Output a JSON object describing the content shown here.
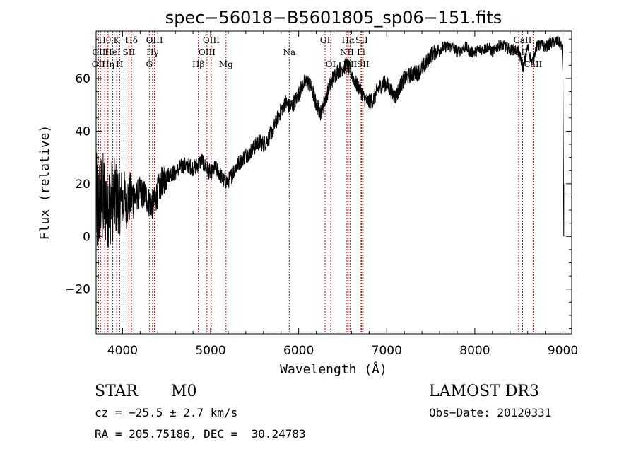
{
  "chart_data": {
    "type": "line",
    "title": "spec−56018−B5601805_sp06−151.fits",
    "xlabel": "Wavelength (Å)",
    "ylabel": "Flux (relative)",
    "xlim": [
      3700,
      9100
    ],
    "ylim": [
      -37,
      78
    ],
    "x_ticks": [
      4000,
      5000,
      6000,
      7000,
      8000,
      9000
    ],
    "x_tick_labels": [
      "4000",
      "5000",
      "6000",
      "7000",
      "8000",
      "9000"
    ],
    "y_ticks": [
      -20,
      0,
      20,
      40,
      60
    ],
    "y_tick_labels": [
      "−20",
      "0",
      "20",
      "40",
      "60"
    ],
    "grid": false,
    "series": [
      {
        "name": "flux",
        "color": "#000000",
        "anchors": [
          [
            3700,
            10
          ],
          [
            3750,
            12
          ],
          [
            3800,
            14
          ],
          [
            3850,
            13
          ],
          [
            3900,
            14
          ],
          [
            3950,
            15
          ],
          [
            4000,
            13
          ],
          [
            4050,
            14
          ],
          [
            4100,
            15
          ],
          [
            4150,
            15
          ],
          [
            4200,
            17
          ],
          [
            4250,
            16
          ],
          [
            4300,
            13
          ],
          [
            4350,
            12
          ],
          [
            4400,
            17
          ],
          [
            4450,
            21
          ],
          [
            4500,
            23
          ],
          [
            4550,
            24
          ],
          [
            4600,
            24
          ],
          [
            4650,
            26
          ],
          [
            4700,
            27
          ],
          [
            4750,
            27
          ],
          [
            4800,
            26
          ],
          [
            4850,
            27
          ],
          [
            4900,
            29
          ],
          [
            4950,
            26
          ],
          [
            5000,
            24
          ],
          [
            5050,
            26
          ],
          [
            5100,
            24
          ],
          [
            5150,
            21
          ],
          [
            5200,
            21
          ],
          [
            5250,
            24
          ],
          [
            5300,
            27
          ],
          [
            5350,
            29
          ],
          [
            5400,
            31
          ],
          [
            5450,
            32
          ],
          [
            5500,
            34
          ],
          [
            5550,
            36
          ],
          [
            5600,
            35
          ],
          [
            5650,
            37
          ],
          [
            5700,
            40
          ],
          [
            5750,
            44
          ],
          [
            5800,
            48
          ],
          [
            5850,
            51
          ],
          [
            5900,
            49
          ],
          [
            5950,
            51
          ],
          [
            6000,
            54
          ],
          [
            6050,
            58
          ],
          [
            6100,
            59
          ],
          [
            6150,
            56
          ],
          [
            6200,
            50
          ],
          [
            6250,
            47
          ],
          [
            6300,
            52
          ],
          [
            6350,
            57
          ],
          [
            6400,
            61
          ],
          [
            6450,
            63
          ],
          [
            6500,
            64
          ],
          [
            6550,
            65
          ],
          [
            6600,
            62
          ],
          [
            6650,
            58
          ],
          [
            6700,
            56
          ],
          [
            6750,
            52
          ],
          [
            6800,
            51
          ],
          [
            6850,
            52
          ],
          [
            6900,
            56
          ],
          [
            6950,
            58
          ],
          [
            7000,
            58
          ],
          [
            7050,
            55
          ],
          [
            7100,
            53
          ],
          [
            7150,
            57
          ],
          [
            7200,
            60
          ],
          [
            7250,
            61
          ],
          [
            7300,
            62
          ],
          [
            7350,
            62
          ],
          [
            7400,
            64
          ],
          [
            7450,
            66
          ],
          [
            7500,
            69
          ],
          [
            7550,
            70
          ],
          [
            7600,
            71
          ],
          [
            7650,
            72
          ],
          [
            7700,
            72
          ],
          [
            7750,
            72
          ],
          [
            7800,
            70
          ],
          [
            7850,
            71
          ],
          [
            7900,
            72
          ],
          [
            7950,
            70
          ],
          [
            8000,
            70
          ],
          [
            8050,
            71
          ],
          [
            8100,
            71
          ],
          [
            8150,
            72
          ],
          [
            8200,
            70
          ],
          [
            8250,
            72
          ],
          [
            8300,
            73
          ],
          [
            8350,
            72
          ],
          [
            8400,
            71
          ],
          [
            8450,
            71
          ],
          [
            8500,
            70
          ],
          [
            8550,
            64
          ],
          [
            8600,
            72
          ],
          [
            8650,
            66
          ],
          [
            8700,
            72
          ],
          [
            8750,
            73
          ],
          [
            8800,
            72
          ],
          [
            8850,
            73
          ],
          [
            8900,
            74
          ],
          [
            8950,
            74
          ],
          [
            8990,
            72
          ],
          [
            9000,
            62
          ],
          [
            9010,
            0
          ]
        ]
      }
    ],
    "line_markers": [
      {
        "x": 3727,
        "label": "OII",
        "row": 2
      },
      {
        "x": 3750,
        "label": "OIII",
        "row": 1
      },
      {
        "x": 3798,
        "label": "Hθ",
        "row": 0
      },
      {
        "x": 3835,
        "label": "Hη",
        "row": 2
      },
      {
        "x": 3889,
        "label": "HeI",
        "row": 1
      },
      {
        "x": 3934,
        "label": "K",
        "row": 0
      },
      {
        "x": 3968,
        "label": "H",
        "row": 2
      },
      {
        "x": 4072,
        "label": "SII",
        "row": 1
      },
      {
        "x": 4102,
        "label": "Hδ",
        "row": 0
      },
      {
        "x": 4304,
        "label": "G",
        "row": 2
      },
      {
        "x": 4341,
        "label": "Hγ",
        "row": 1
      },
      {
        "x": 4363,
        "label": "OIII",
        "row": 0
      },
      {
        "x": 4861,
        "label": "Hβ",
        "row": 2
      },
      {
        "x": 4959,
        "label": "OIII",
        "row": 1
      },
      {
        "x": 5007,
        "label": "OIII",
        "row": 0
      },
      {
        "x": 5175,
        "label": "Mg",
        "row": 2
      },
      {
        "x": 5893,
        "label": "Na",
        "row": 1
      },
      {
        "x": 6300,
        "label": "OI",
        "row": 0
      },
      {
        "x": 6364,
        "label": "OI",
        "row": 2
      },
      {
        "x": 6548,
        "label": "NII",
        "row": 1
      },
      {
        "x": 6563,
        "label": "Hα",
        "row": 0
      },
      {
        "x": 6583,
        "label": "NII",
        "row": 2
      },
      {
        "x": 6708,
        "label": "Li",
        "row": 1
      },
      {
        "x": 6716,
        "label": "SII",
        "row": 0
      },
      {
        "x": 6731,
        "label": "SII",
        "row": 2
      },
      {
        "x": 8498,
        "label": "CaII",
        "row": 1
      },
      {
        "x": 8542,
        "label": "CaII",
        "row": 0
      },
      {
        "x": 8662,
        "label": "CaII",
        "row": 2
      }
    ]
  },
  "info": {
    "object_class": "STAR",
    "subclass": "M0",
    "survey": "LAMOST DR3",
    "cz": "cz = −25.5 ± 2.7 km/s",
    "obs_date": "Obs−Date: 20120331",
    "coords": "RA = 205.75186, DEC =  30.24783"
  }
}
